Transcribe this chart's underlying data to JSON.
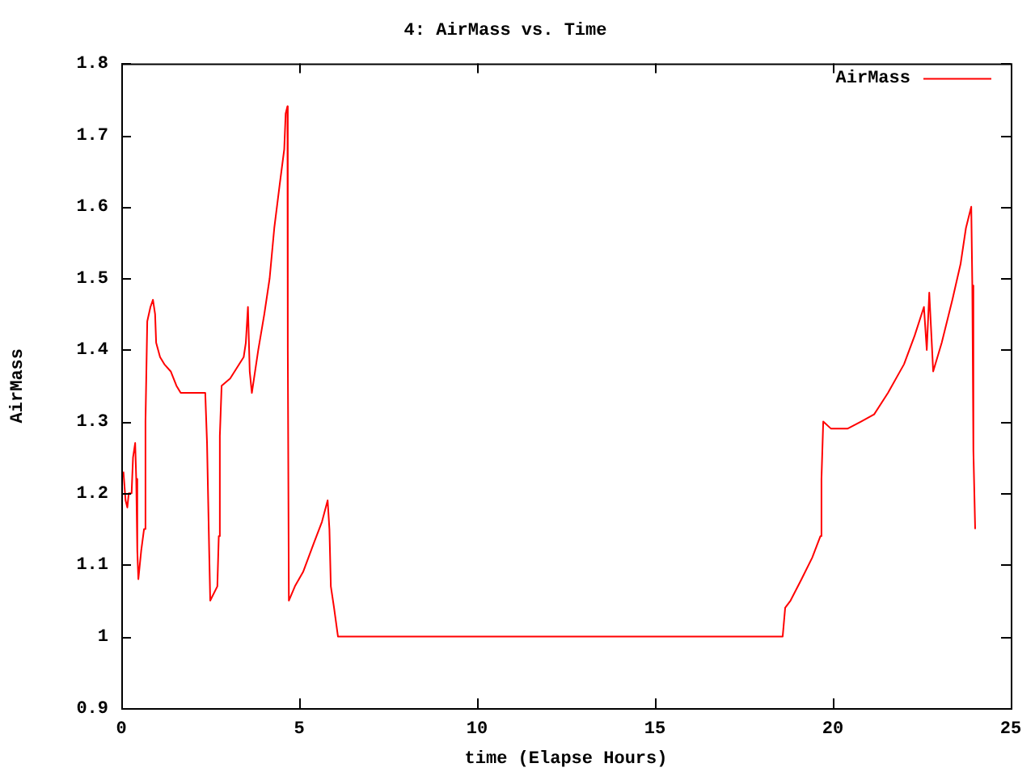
{
  "chart_data": {
    "type": "line",
    "title": "4: AirMass vs. Time",
    "xlabel": "time (Elapse Hours)",
    "ylabel": "AirMass",
    "xlim": [
      0,
      25
    ],
    "xticks": [
      0,
      5,
      10,
      15,
      20,
      25
    ],
    "ylim": [
      0.9,
      1.8
    ],
    "yticks": [
      {
        "value": 0.9,
        "label": "0.9"
      },
      {
        "value": 1,
        "label": "1"
      },
      {
        "value": 1.1,
        "label": "1.1"
      },
      {
        "value": 1.2,
        "label": "1.2"
      },
      {
        "value": 1.3,
        "label": "1.3"
      },
      {
        "value": 1.4,
        "label": "1.4"
      },
      {
        "value": 1.5,
        "label": "1.5"
      },
      {
        "value": 1.6,
        "label": "1.6"
      },
      {
        "value": 1.7,
        "label": "1.7"
      },
      {
        "value": 1.8,
        "label": "1.8"
      }
    ],
    "grid": false,
    "legend": "top right",
    "marker": "none",
    "line_style": "solid",
    "series": [
      {
        "name": "AirMass",
        "color": "#ff0000",
        "x": [
          0.06,
          0.12,
          0.17,
          0.21,
          0.29,
          0.33,
          0.39,
          0.42,
          0.45,
          0.48,
          0.56,
          0.64,
          0.68,
          0.73,
          0.82,
          0.89,
          0.95,
          0.98,
          1.09,
          1.21,
          1.39,
          1.55,
          1.67,
          1.85,
          2.36,
          2.41,
          2.47,
          2.5,
          2.7,
          2.74,
          2.77,
          2.82,
          3.06,
          3.44,
          3.5,
          3.56,
          3.61,
          3.67,
          3.73,
          3.85,
          4.02,
          4.17,
          4.3,
          4.45,
          4.58,
          4.62,
          4.67,
          4.68,
          4.71,
          4.88,
          5.11,
          5.41,
          5.64,
          5.8,
          5.85,
          5.89,
          5.98,
          6.09,
          18.59,
          18.66,
          18.81,
          19.12,
          19.42,
          19.65,
          19.68,
          19.73,
          19.95,
          20.41,
          20.79,
          21.16,
          21.55,
          22.0,
          22.3,
          22.56,
          22.64,
          22.71,
          22.75,
          22.82,
          23.06,
          23.36,
          23.59,
          23.74,
          23.89,
          23.92,
          23.95,
          24.0
        ],
        "values": [
          1.23,
          1.19,
          1.18,
          1.2,
          1.2,
          1.25,
          1.27,
          1.22,
          1.12,
          1.08,
          1.12,
          1.15,
          1.3,
          1.44,
          1.46,
          1.47,
          1.45,
          1.41,
          1.39,
          1.38,
          1.37,
          1.35,
          1.34,
          1.34,
          1.34,
          1.27,
          1.12,
          1.05,
          1.07,
          1.14,
          1.28,
          1.35,
          1.36,
          1.39,
          1.41,
          1.46,
          1.37,
          1.34,
          1.36,
          1.4,
          1.45,
          1.5,
          1.57,
          1.63,
          1.68,
          1.73,
          1.74,
          1.4,
          1.05,
          1.07,
          1.09,
          1.13,
          1.16,
          1.19,
          1.15,
          1.07,
          1.04,
          1.0,
          1.0,
          1.04,
          1.05,
          1.08,
          1.11,
          1.14,
          1.22,
          1.3,
          1.29,
          1.29,
          1.3,
          1.31,
          1.34,
          1.38,
          1.42,
          1.46,
          1.4,
          1.48,
          1.44,
          1.37,
          1.41,
          1.47,
          1.52,
          1.57,
          1.6,
          1.49,
          1.26,
          1.15
        ]
      }
    ]
  }
}
